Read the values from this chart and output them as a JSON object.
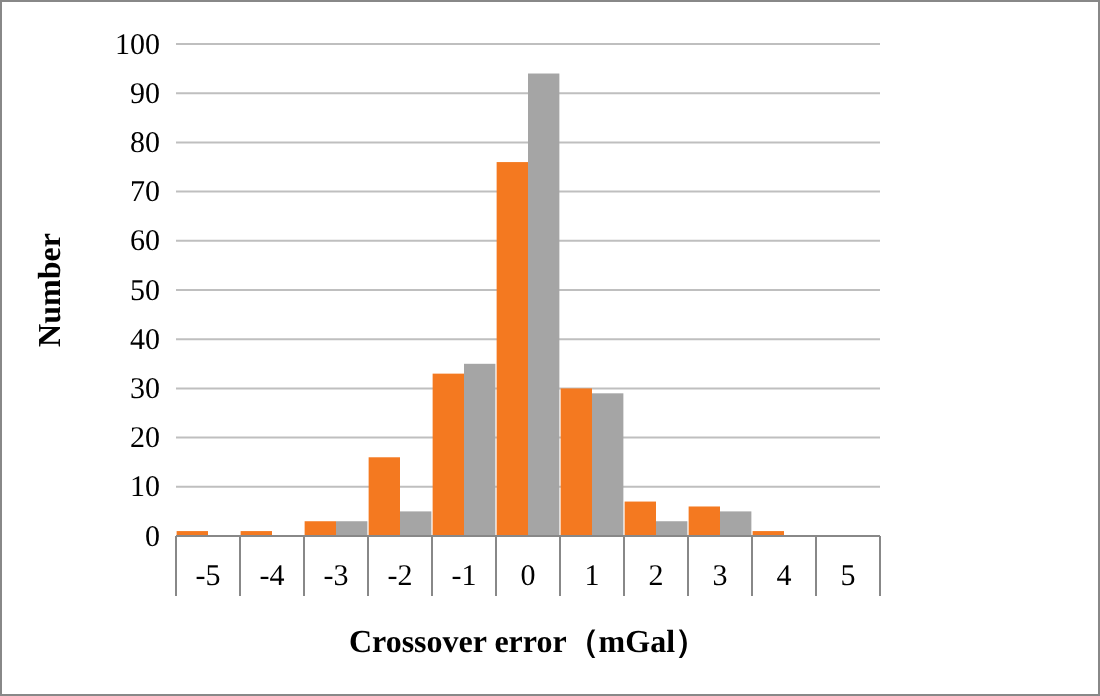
{
  "chart_data": {
    "type": "bar",
    "xlabel": "Crossover error（mGal）",
    "ylabel": "Number",
    "categories": [
      "-5",
      "-4",
      "-3",
      "-2",
      "-1",
      "0",
      "1",
      "2",
      "3",
      "4",
      "5"
    ],
    "series": [
      {
        "color": "#f47920",
        "values": [
          1,
          1,
          3,
          16,
          33,
          76,
          30,
          7,
          6,
          1,
          0
        ]
      },
      {
        "color": "#a5a5a5",
        "values": [
          0,
          0,
          3,
          5,
          35,
          94,
          29,
          3,
          5,
          0,
          0
        ]
      }
    ],
    "ylim": [
      0,
      100
    ],
    "yticks": [
      0,
      10,
      20,
      30,
      40,
      50,
      60,
      70,
      80,
      90,
      100
    ],
    "grid": "y"
  }
}
